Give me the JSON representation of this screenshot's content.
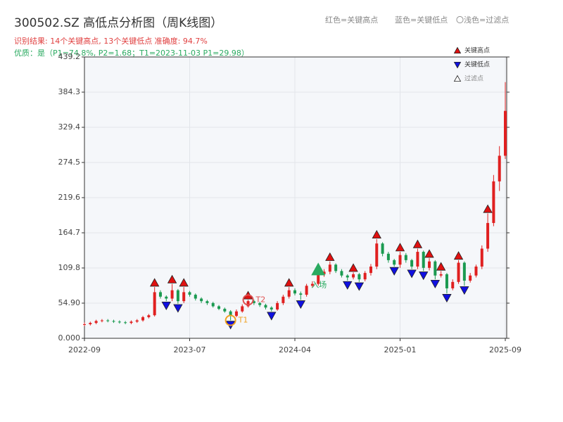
{
  "chart_data": {
    "type": "candlestick",
    "title": "300502.SZ 高低点分析图（周K线图）",
    "subtitle": "识别结果: 14个关键高点, 13个关键低点  准确度: 94.7%",
    "note": "优质：是（P1=74.8%, P2=1.68；T1=2023-11-03 P1=29.98）",
    "top_legend": [
      "红色=关键高点",
      "蓝色=关键低点",
      "〇浅色=过滤点"
    ],
    "categories": [
      "2022-09",
      null,
      null,
      null,
      null,
      null,
      null,
      null,
      null,
      null,
      null,
      null,
      null,
      null,
      null,
      null,
      null,
      null,
      "2023-07",
      null,
      null,
      null,
      null,
      null,
      null,
      null,
      null,
      null,
      null,
      null,
      null,
      null,
      null,
      null,
      null,
      null,
      "2024-04",
      null,
      null,
      null,
      null,
      null,
      null,
      null,
      null,
      null,
      null,
      null,
      null,
      null,
      null,
      null,
      null,
      null,
      "2025-01",
      null,
      null,
      null,
      null,
      null,
      null,
      null,
      null,
      null,
      null,
      null,
      null,
      null,
      null,
      null,
      null,
      null,
      "2025-09"
    ],
    "open": [
      21,
      22,
      24,
      27,
      28,
      27,
      26,
      25,
      24,
      26,
      28,
      33,
      36,
      72,
      65,
      62,
      75,
      58,
      72,
      68,
      62,
      58,
      55,
      50,
      46,
      42,
      35,
      42,
      50,
      58,
      55,
      52,
      48,
      45,
      55,
      65,
      75,
      70,
      68,
      82,
      85,
      100,
      104,
      115,
      105,
      98,
      95,
      100,
      92,
      102,
      112,
      148,
      132,
      122,
      115,
      130,
      122,
      112,
      135,
      110,
      120,
      98,
      100,
      78,
      88,
      118,
      90,
      98,
      112,
      140,
      180,
      245,
      285
    ],
    "high": [
      25,
      26,
      29,
      30,
      30,
      29,
      28,
      27,
      28,
      30,
      35,
      38,
      80,
      75,
      67,
      85,
      77,
      80,
      74,
      70,
      64,
      60,
      57,
      52,
      48,
      44,
      45,
      53,
      60,
      60,
      57,
      54,
      50,
      58,
      68,
      80,
      78,
      73,
      85,
      89,
      105,
      108,
      120,
      117,
      108,
      100,
      103,
      102,
      105,
      116,
      155,
      150,
      135,
      124,
      135,
      133,
      124,
      140,
      137,
      125,
      122,
      105,
      102,
      92,
      122,
      120,
      102,
      115,
      145,
      195,
      255,
      300,
      400
    ],
    "low": [
      19,
      20,
      22,
      25,
      25,
      24,
      23,
      22,
      22,
      24,
      26,
      31,
      34,
      62,
      58,
      58,
      54,
      55,
      65,
      59,
      55,
      52,
      48,
      44,
      40,
      28,
      33,
      40,
      48,
      52,
      49,
      45,
      42,
      43,
      52,
      62,
      67,
      60,
      65,
      79,
      82,
      96,
      100,
      102,
      95,
      90,
      92,
      88,
      89,
      98,
      108,
      128,
      118,
      112,
      110,
      118,
      108,
      108,
      105,
      106,
      92,
      95,
      70,
      75,
      85,
      82,
      87,
      95,
      108,
      135,
      175,
      230,
      280
    ],
    "close": [
      22,
      24,
      27,
      28,
      27,
      26,
      25,
      24,
      26,
      28,
      33,
      36,
      72,
      65,
      62,
      75,
      58,
      72,
      68,
      62,
      58,
      55,
      50,
      46,
      42,
      35,
      42,
      50,
      58,
      55,
      52,
      48,
      45,
      55,
      65,
      75,
      70,
      68,
      82,
      85,
      100,
      104,
      115,
      105,
      98,
      95,
      100,
      92,
      102,
      112,
      148,
      132,
      122,
      115,
      130,
      122,
      112,
      135,
      110,
      120,
      98,
      100,
      78,
      88,
      118,
      90,
      98,
      112,
      140,
      180,
      245,
      285,
      355
    ],
    "up_color": "#e02020",
    "down_color": "#1a9a50",
    "markers": [
      {
        "name": "关键高点",
        "color": "#e01010",
        "shape": "up",
        "indices": [
          12,
          15,
          17,
          28,
          35,
          42,
          46,
          50,
          54,
          57,
          59,
          61,
          64,
          69
        ],
        "values": [
          80,
          85,
          80,
          60,
          80,
          120,
          103,
          155,
          135,
          140,
          125,
          105,
          122,
          195
        ]
      },
      {
        "name": "关键低点",
        "color": "#1010e0",
        "shape": "down",
        "indices": [
          14,
          16,
          25,
          32,
          37,
          45,
          47,
          53,
          56,
          58,
          60,
          62,
          65
        ],
        "values": [
          58,
          54,
          28,
          42,
          60,
          90,
          88,
          112,
          108,
          105,
          92,
          70,
          82
        ]
      },
      {
        "name": "过滤点",
        "color": "#ffffff",
        "shape": "up",
        "indices": [],
        "values": []
      }
    ],
    "annotations": [
      {
        "text": "T1",
        "index": 25,
        "value": 28,
        "color": "#f0a020",
        "style": "circle"
      },
      {
        "text": "T2",
        "index": 28,
        "value": 60,
        "color": "#e05050",
        "style": "circle"
      },
      {
        "text": "入场",
        "index": 40,
        "value": 105,
        "color": "#2aaa60",
        "style": "triangle"
      }
    ],
    "ylim": [
      0,
      439.2
    ],
    "yticks": [
      {
        "value": 0,
        "label": "0.000"
      },
      {
        "value": 54.9,
        "label": "54.90"
      },
      109.8,
      164.7,
      219.6,
      274.5,
      329.4,
      384.3,
      439.2
    ],
    "grid": true
  }
}
